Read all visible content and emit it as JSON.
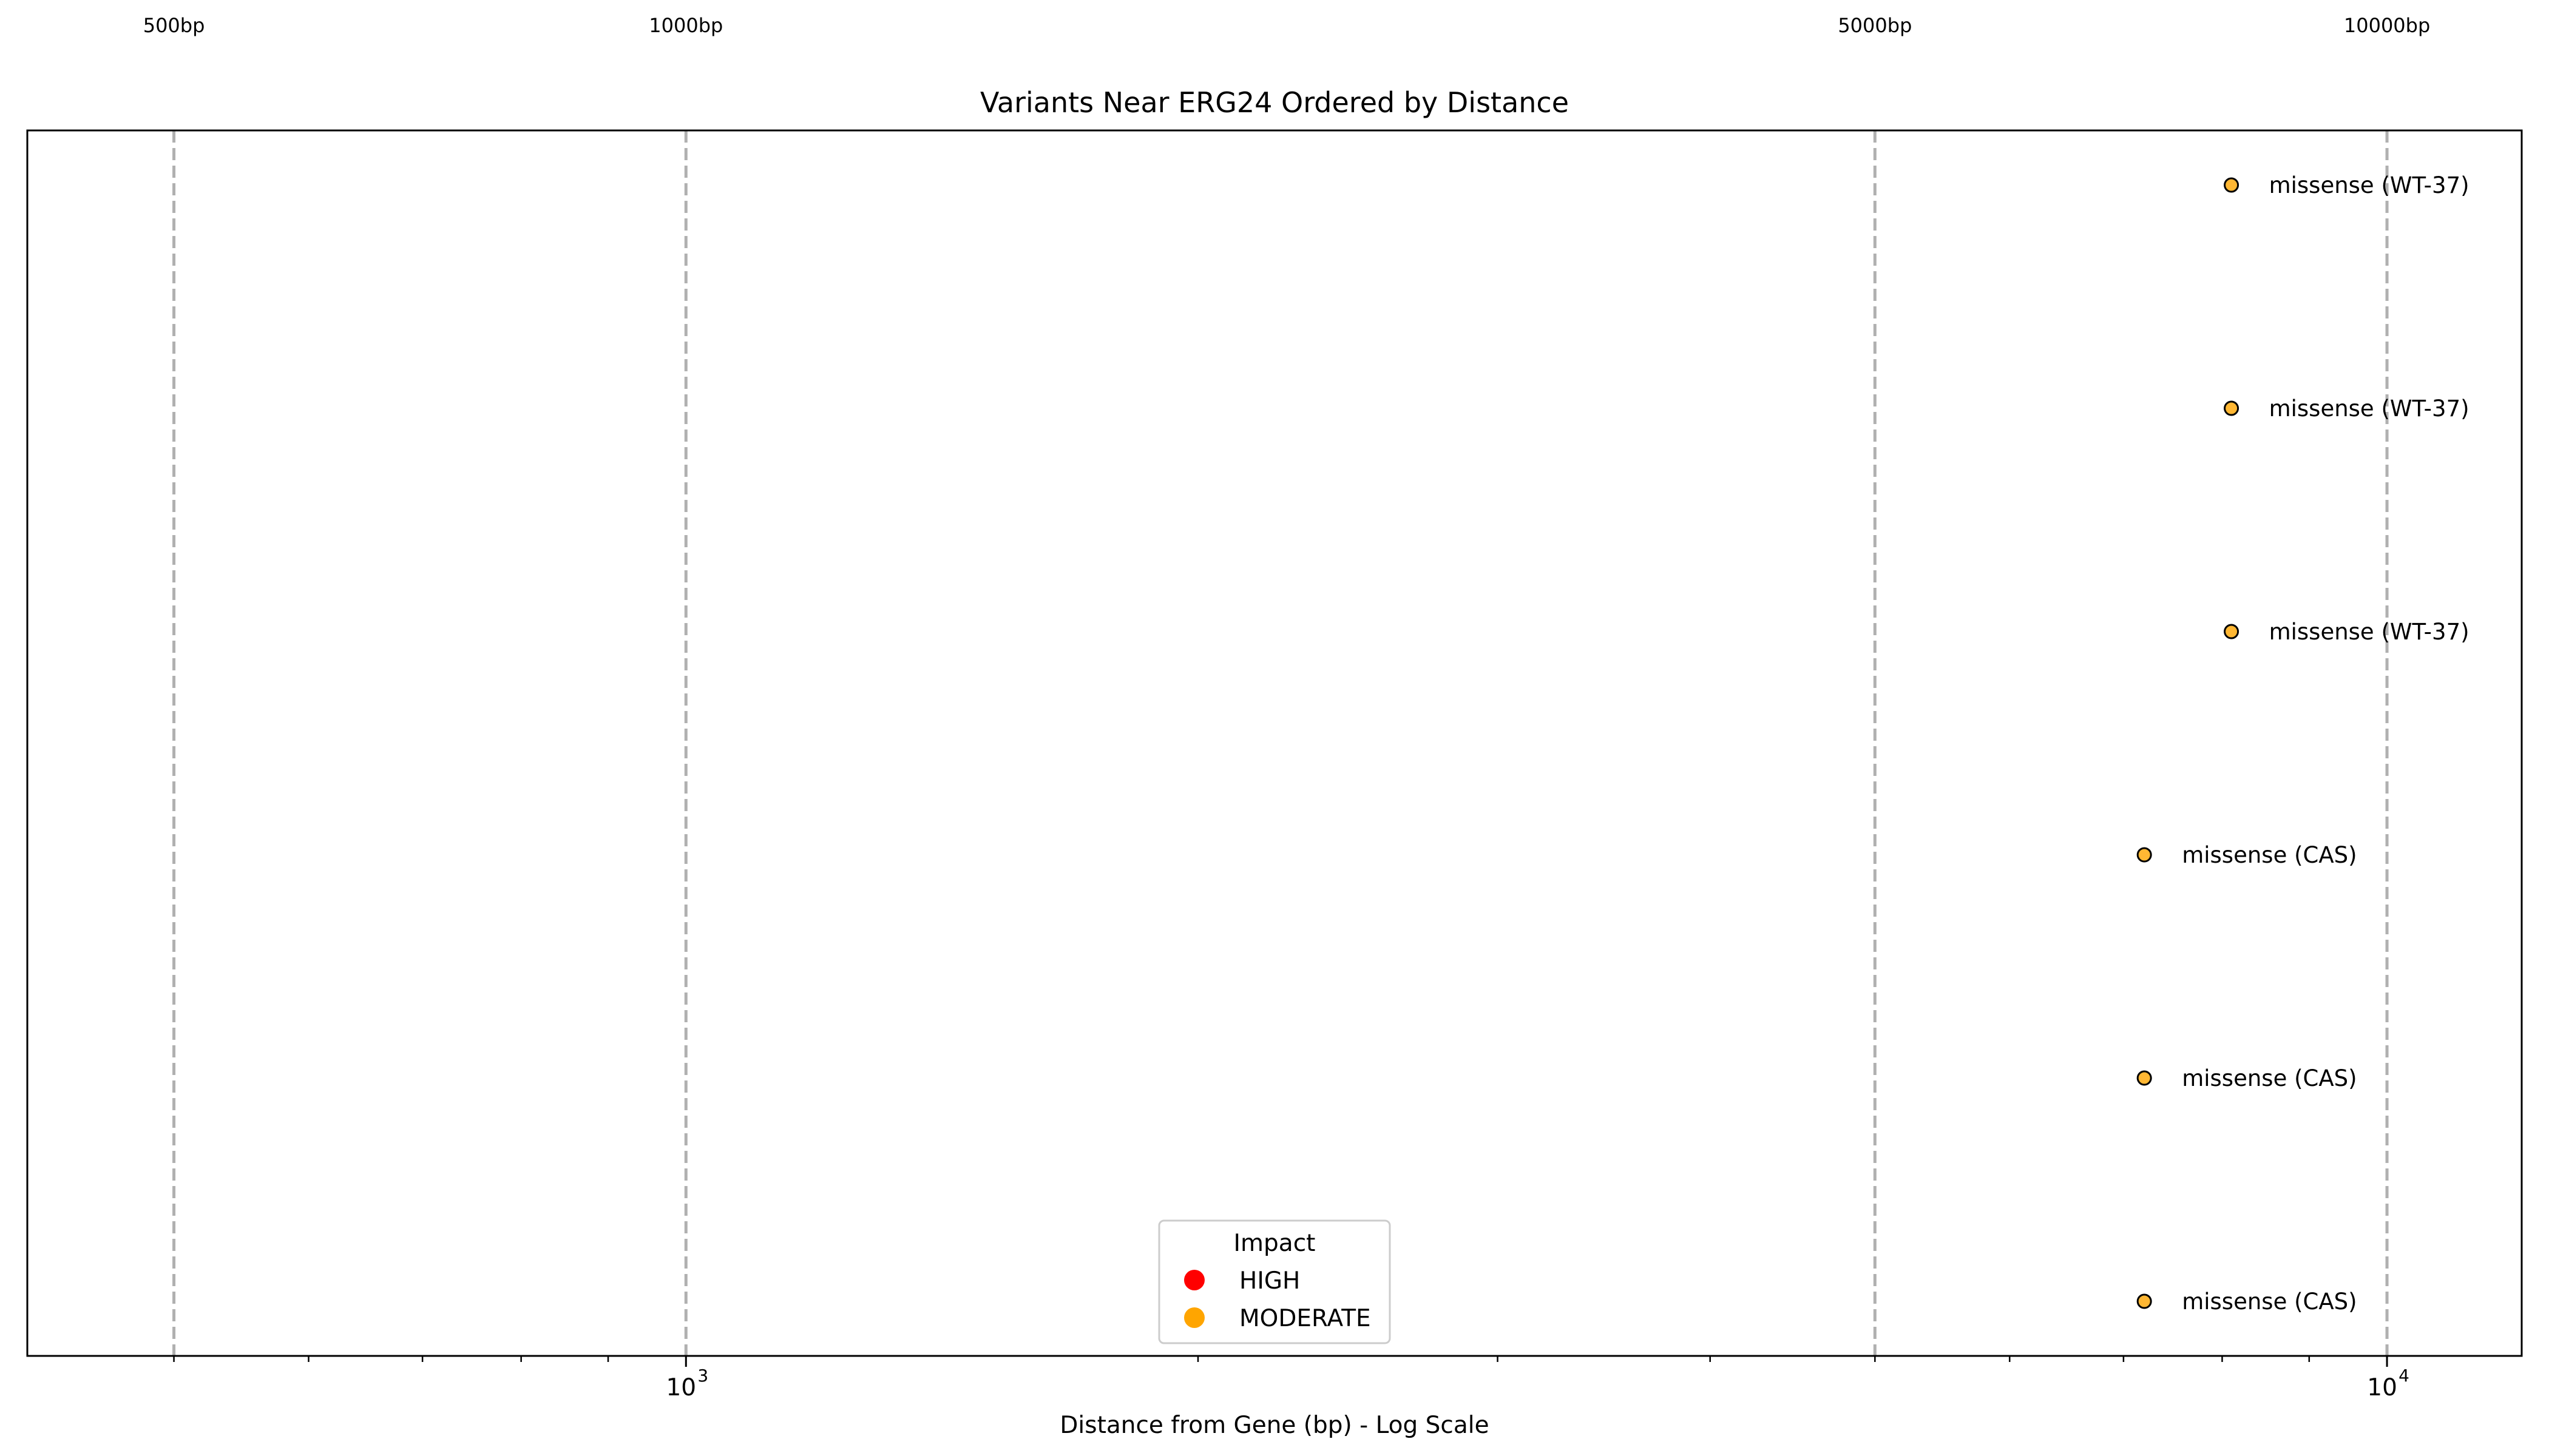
{
  "chart_data": {
    "type": "scatter",
    "title": "Variants Near ERG24 Ordered by Distance",
    "xlabel": "Distance from Gene (bp) - Log Scale",
    "ylabel": "",
    "x_scale": "log",
    "xlim": [
      410,
      12000
    ],
    "x_ticks": [
      {
        "value": 1000,
        "base": "10",
        "exp": "3"
      },
      {
        "value": 10000,
        "base": "10",
        "exp": "4"
      }
    ],
    "reference_lines": [
      {
        "x": 500,
        "label": "500bp"
      },
      {
        "x": 1000,
        "label": "1000bp"
      },
      {
        "x": 5000,
        "label": "5000bp"
      },
      {
        "x": 10000,
        "label": "10000bp"
      }
    ],
    "points": [
      {
        "x": 8100,
        "rank": 1,
        "impact": "MODERATE",
        "label": "missense (WT-37)"
      },
      {
        "x": 8100,
        "rank": 2,
        "impact": "MODERATE",
        "label": "missense (WT-37)"
      },
      {
        "x": 8100,
        "rank": 3,
        "impact": "MODERATE",
        "label": "missense (WT-37)"
      },
      {
        "x": 7200,
        "rank": 4,
        "impact": "MODERATE",
        "label": "missense (CAS)"
      },
      {
        "x": 7200,
        "rank": 5,
        "impact": "MODERATE",
        "label": "missense (CAS)"
      },
      {
        "x": 7200,
        "rank": 6,
        "impact": "MODERATE",
        "label": "missense (CAS)"
      }
    ],
    "legend": {
      "title": "Impact",
      "placement": "bottom-center",
      "entries": [
        {
          "label": "HIGH",
          "color": "#ff0000"
        },
        {
          "label": "MODERATE",
          "color": "#ffa500"
        }
      ]
    },
    "colors": {
      "HIGH": "#ff0000",
      "MODERATE": "#ffa500",
      "gridline": "#b0b0b0"
    },
    "grid": false
  }
}
